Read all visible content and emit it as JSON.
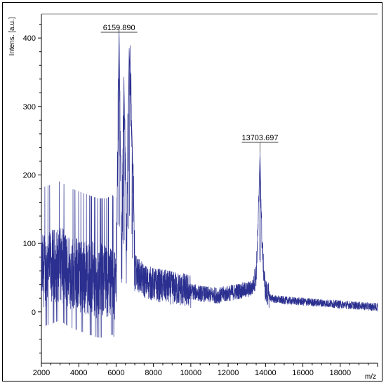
{
  "chart_data": {
    "type": "line",
    "title": "",
    "xlabel": "m/z",
    "ylabel": "Intens. [a.u.]",
    "xlim": [
      2000,
      20000
    ],
    "ylim": [
      -75,
      435
    ],
    "x_ticks": [
      "2000",
      "4000",
      "6000",
      "8000",
      "10000",
      "12000",
      "14000",
      "16000",
      "18000"
    ],
    "y_ticks": [
      "0",
      "100",
      "200",
      "300",
      "400"
    ],
    "grid": false,
    "line_color": "#2b2f8f",
    "peaks": [
      {
        "label": "6159.890",
        "x": 6160,
        "y": 412
      },
      {
        "label": "13703.697",
        "x": 13704,
        "y": 232
      }
    ],
    "series": [
      {
        "x": [
          2000,
          2500,
          3000,
          3500,
          4000,
          4500,
          5000,
          5500,
          5800,
          6000,
          6160,
          6300,
          6420,
          6550,
          6700,
          6860,
          7000,
          7500,
          8000,
          8500,
          9000,
          9500,
          10000,
          10500,
          11000,
          11500,
          12000,
          12500,
          13000,
          13300,
          13500,
          13600,
          13704,
          13800,
          13900,
          14000,
          14300,
          14600,
          15000,
          15500,
          16000,
          16500,
          17000,
          17500,
          18000,
          18500,
          19000,
          19500,
          20000
        ],
        "y": [
          60,
          65,
          70,
          60,
          55,
          50,
          45,
          45,
          50,
          40,
          412,
          60,
          343,
          80,
          385,
          250,
          60,
          45,
          40,
          38,
          35,
          33,
          30,
          27,
          25,
          24,
          27,
          30,
          32,
          35,
          55,
          120,
          232,
          110,
          60,
          30,
          20,
          18,
          17,
          16,
          15,
          14,
          13,
          12,
          11,
          10,
          9,
          8,
          7
        ]
      }
    ]
  }
}
